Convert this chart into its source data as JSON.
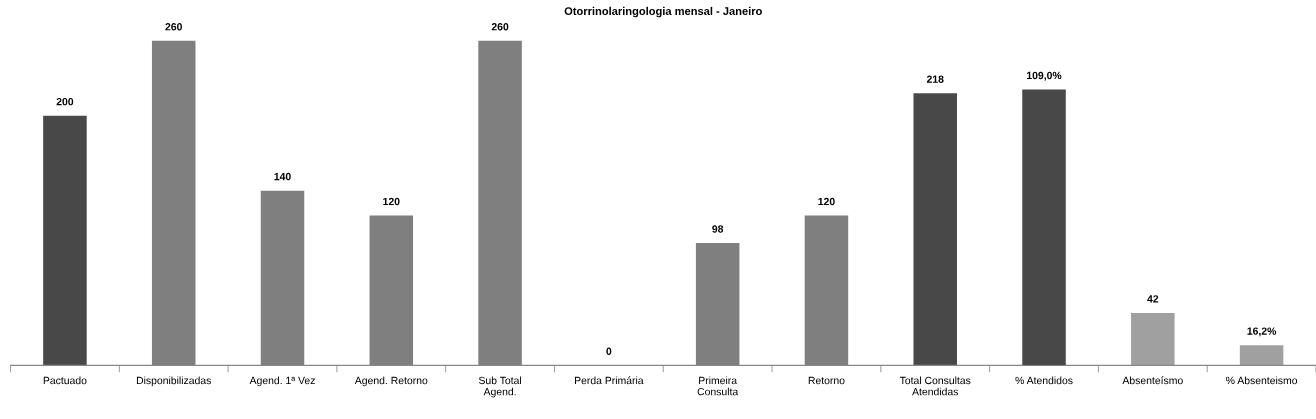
{
  "chart_data": {
    "type": "bar",
    "title": "Otorrinolaringologia mensal - Janeiro",
    "categories": [
      "Pactuado",
      "Disponibilizadas",
      "Agend. 1ª Vez",
      "Agend. Retorno",
      "Sub Total Agend.",
      "Perda Primária",
      "Primeira Consulta",
      "Retorno",
      "Total Consultas Atendidas",
      "% Atendidos",
      "Absenteísmo",
      "% Absenteismo"
    ],
    "series": [
      {
        "values": [
          200,
          260,
          140,
          120,
          260,
          0,
          98,
          120,
          218,
          null,
          42,
          16.2
        ],
        "colors": [
          "#484848",
          "#7f7f7f",
          "#7f7f7f",
          "#7f7f7f",
          "#7f7f7f",
          "#7f7f7f",
          "#7f7f7f",
          "#7f7f7f",
          "#484848",
          "#484848",
          "#a0a0a0",
          "#a0a0a0"
        ],
        "value_labels": [
          "200",
          "260",
          "140",
          "120",
          "260",
          "0",
          "98",
          "120",
          "218",
          null,
          "42",
          "16,2%"
        ]
      },
      {
        "axis": "y2",
        "color": "#484848",
        "values": [
          null,
          null,
          null,
          null,
          null,
          null,
          null,
          null,
          null,
          109.0,
          null,
          null
        ],
        "value_labels": [
          null,
          null,
          null,
          null,
          null,
          null,
          null,
          null,
          null,
          "109,0%",
          null,
          null
        ]
      }
    ],
    "grid": false,
    "legend": false,
    "tick_labels": "x"
  }
}
